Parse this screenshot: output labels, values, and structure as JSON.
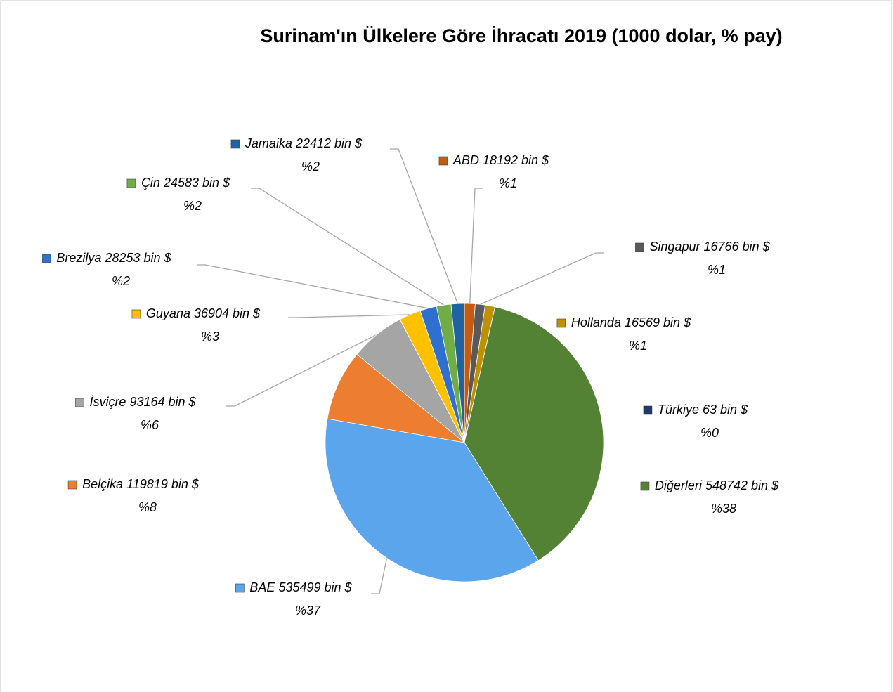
{
  "chart_data": {
    "type": "pie",
    "title": "Surinam'ın Ülkelere Göre İhracatı 2019 (1000 dolar, % pay)",
    "categories": [
      "ABD",
      "Singapur",
      "Hollanda",
      "Türkiye",
      "Diğerleri",
      "BAE",
      "Belçika",
      "İsviçre",
      "Guyana",
      "Brezilya",
      "Çin",
      "Jamaika"
    ],
    "values": [
      18192,
      16766,
      16569,
      63,
      548742,
      535499,
      119819,
      93164,
      36904,
      28253,
      24583,
      22412
    ],
    "value_labels": [
      "18192 bin $",
      "16766 bin $",
      "16569 bin $",
      "63 bin $",
      "548742 bin $",
      "535499 bin $",
      "119819 bin $",
      "93164 bin $",
      "36904 bin $",
      "28253 bin $",
      "24583 bin $",
      "22412 bin $"
    ],
    "percents": [
      1,
      1,
      1,
      0,
      38,
      37,
      8,
      6,
      3,
      2,
      2,
      2
    ],
    "percent_labels": [
      "%1",
      "%1",
      "%1",
      "%0",
      "%38",
      "%37",
      "%8",
      "%6",
      "%3",
      "%2",
      "%2",
      "%2"
    ],
    "colors": [
      "#c55a11",
      "#595959",
      "#bf9000",
      "#203864",
      "#548235",
      "#5aa5eb",
      "#ed7d31",
      "#a5a5a5",
      "#ffc000",
      "#2f6fd0",
      "#70ad47",
      "#1f63a3"
    ]
  }
}
